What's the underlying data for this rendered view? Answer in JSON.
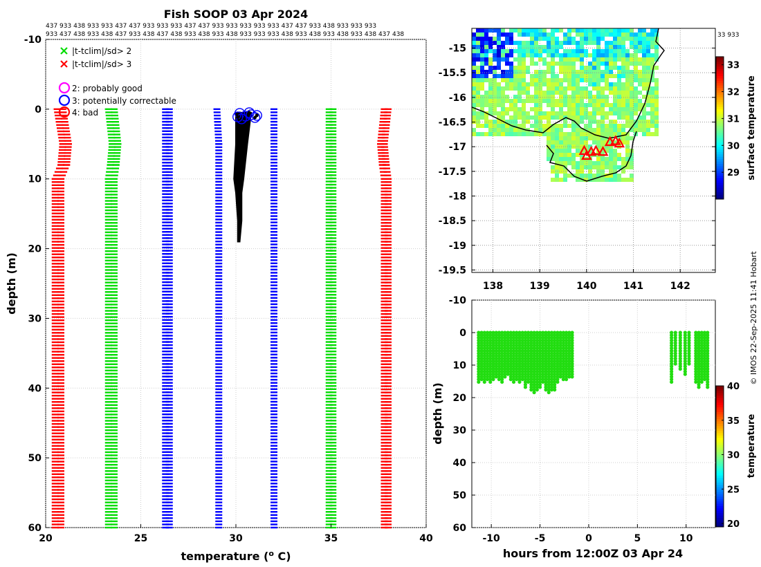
{
  "chart_data": [
    {
      "type": "scatter",
      "title": "Fish SOOP 03 Apr 2024",
      "xlabel": "temperature (",
      "xlabel_sup": "o",
      "xlabel_end": " C)",
      "ylabel": "depth (m)",
      "xlim": [
        20,
        40
      ],
      "ylim": [
        60,
        -10
      ],
      "xticks": [
        20,
        25,
        30,
        35,
        40
      ],
      "yticks": [
        -10,
        0,
        10,
        20,
        30,
        40,
        50,
        60
      ],
      "grid": true,
      "top_codes_row1": "437 933 438 933 933 437 437 933 933 933 437 437 933 933 933 933 933 437 437 933 438 933 933 933",
      "top_codes_row2": "933 437 438 933 438 437 933 438 437 438 933 438 933 438 933 933 933 438 933 438 933 438 933 438 437 438",
      "legend": {
        "green_cross": "|t-tclim|/sd> 2",
        "red_cross": "|t-tclim|/sd> 3",
        "magenta_circle": "2: probably good",
        "blue_circle": "3: potentially correctable",
        "red_circle": "4: bad"
      },
      "envelopes": [
        {
          "name": "clim-3sd-low",
          "color": "#ff0000",
          "points": [
            [
              20.6,
              0
            ],
            [
              20.9,
              5
            ],
            [
              20.8,
              8
            ],
            [
              20.5,
              10
            ],
            [
              20.5,
              60
            ]
          ]
        },
        {
          "name": "clim-3sd-low-inner",
          "color": "#ff0000",
          "points": [
            [
              20.9,
              0
            ],
            [
              21.2,
              5
            ],
            [
              21.1,
              8
            ],
            [
              20.8,
              10
            ],
            [
              20.8,
              60
            ]
          ]
        },
        {
          "name": "clim-2sd-low",
          "color": "#00dd00",
          "points": [
            [
              23.3,
              0
            ],
            [
              23.5,
              5
            ],
            [
              23.4,
              8
            ],
            [
              23.3,
              10
            ],
            [
              23.3,
              60
            ]
          ]
        },
        {
          "name": "clim-2sd-low-inner",
          "color": "#00dd00",
          "points": [
            [
              23.6,
              0
            ],
            [
              23.8,
              5
            ],
            [
              23.7,
              8
            ],
            [
              23.6,
              10
            ],
            [
              23.6,
              60
            ]
          ]
        },
        {
          "name": "clim-1sd-low",
          "color": "#0000ff",
          "points": [
            [
              26.3,
              0
            ],
            [
              26.3,
              60
            ]
          ]
        },
        {
          "name": "clim-1sd-low-inner",
          "color": "#0000ff",
          "points": [
            [
              26.5,
              0
            ],
            [
              26.5,
              60
            ]
          ]
        },
        {
          "name": "clim-mean",
          "color": "#0000ff",
          "points": [
            [
              29.0,
              0
            ],
            [
              29.1,
              5
            ],
            [
              29.1,
              60
            ]
          ]
        },
        {
          "name": "clim-1sd-high",
          "color": "#0000ff",
          "points": [
            [
              32.0,
              0
            ],
            [
              32.0,
              60
            ]
          ]
        },
        {
          "name": "clim-2sd-high",
          "color": "#00dd00",
          "points": [
            [
              34.9,
              0
            ],
            [
              34.9,
              60
            ]
          ]
        },
        {
          "name": "clim-2sd-high-inner",
          "color": "#00dd00",
          "points": [
            [
              35.1,
              0
            ],
            [
              35.1,
              60
            ]
          ]
        },
        {
          "name": "clim-3sd-high",
          "color": "#ff0000",
          "points": [
            [
              37.8,
              0
            ],
            [
              37.6,
              5
            ],
            [
              37.7,
              8
            ],
            [
              37.8,
              10
            ],
            [
              37.8,
              60
            ]
          ]
        },
        {
          "name": "clim-3sd-high-inner",
          "color": "#ff0000",
          "points": [
            [
              38.0,
              0
            ],
            [
              37.8,
              5
            ],
            [
              37.9,
              8
            ],
            [
              38.0,
              10
            ],
            [
              38.0,
              60
            ]
          ]
        }
      ],
      "profiles": [
        {
          "name": "fish-profiles-min",
          "points": [
            [
              30.0,
              0.5
            ],
            [
              30.0,
              5
            ],
            [
              29.9,
              10
            ],
            [
              30.0,
              12
            ],
            [
              30.1,
              16
            ],
            [
              30.1,
              19
            ]
          ]
        },
        {
          "name": "fish-profiles-max",
          "points": [
            [
              30.8,
              0.5
            ],
            [
              30.6,
              5
            ],
            [
              30.4,
              10
            ],
            [
              30.3,
              12
            ],
            [
              30.3,
              16
            ],
            [
              30.2,
              19
            ]
          ]
        }
      ],
      "flagged_points": [
        {
          "t": 30.2,
          "d": 0.6
        },
        {
          "t": 30.5,
          "d": 1.0
        },
        {
          "t": 30.8,
          "d": 0.8
        },
        {
          "t": 31.0,
          "d": 1.2
        },
        {
          "t": 30.3,
          "d": 1.4
        },
        {
          "t": 30.7,
          "d": 0.5
        },
        {
          "t": 31.1,
          "d": 0.9
        },
        {
          "t": 30.1,
          "d": 1.1
        }
      ]
    },
    {
      "type": "heatmap",
      "name": "surface-temperature-map",
      "xticks": [
        138,
        139,
        140,
        141,
        142
      ],
      "yticks": [
        -15,
        -15.5,
        -16,
        -16.5,
        -17,
        -17.5,
        -18,
        -18.5,
        -19,
        -19.5
      ],
      "xlim": [
        137.55,
        142.75
      ],
      "ylim": [
        -19.55,
        -14.6
      ],
      "grid": true,
      "colorbar_label": "surface temperature",
      "colorbar_range": [
        28,
        33.3
      ],
      "colorbar_ticks": [
        29,
        30,
        31,
        32,
        33
      ],
      "right_codes": "33 933",
      "station_markers": [
        {
          "lon": 139.95,
          "lat": -17.08
        },
        {
          "lon": 140.1,
          "lat": -17.1
        },
        {
          "lon": 140.2,
          "lat": -17.08
        },
        {
          "lon": 140.35,
          "lat": -17.1
        },
        {
          "lon": 140.0,
          "lat": -17.18
        },
        {
          "lon": 140.5,
          "lat": -16.9
        },
        {
          "lon": 140.62,
          "lat": -16.88
        },
        {
          "lon": 140.7,
          "lat": -16.93
        }
      ]
    },
    {
      "type": "scatter",
      "name": "depth-time-section",
      "xlabel": "hours from 12:00Z 03 Apr 24",
      "ylabel": "depth (m)",
      "xlim": [
        -12,
        13
      ],
      "ylim": [
        60,
        -10
      ],
      "xticks": [
        -10,
        -5,
        0,
        5,
        10
      ],
      "yticks": [
        -10,
        0,
        10,
        20,
        30,
        40,
        50,
        60
      ],
      "grid": true,
      "colorbar_label": "temperature",
      "colorbar_range": [
        19.5,
        40
      ],
      "colorbar_ticks": [
        20,
        25,
        30,
        35,
        40
      ],
      "casts": [
        {
          "h": -11.3,
          "d": 16
        },
        {
          "h": -11.0,
          "d": 15
        },
        {
          "h": -10.7,
          "d": 16
        },
        {
          "h": -10.4,
          "d": 15
        },
        {
          "h": -10.1,
          "d": 16
        },
        {
          "h": -9.8,
          "d": 15
        },
        {
          "h": -9.5,
          "d": 14
        },
        {
          "h": -9.2,
          "d": 15
        },
        {
          "h": -8.9,
          "d": 16
        },
        {
          "h": -8.6,
          "d": 14
        },
        {
          "h": -8.3,
          "d": 13
        },
        {
          "h": -8.0,
          "d": 15
        },
        {
          "h": -7.7,
          "d": 16
        },
        {
          "h": -7.4,
          "d": 15
        },
        {
          "h": -7.1,
          "d": 16
        },
        {
          "h": -6.8,
          "d": 15
        },
        {
          "h": -6.5,
          "d": 17
        },
        {
          "h": -6.2,
          "d": 16
        },
        {
          "h": -5.9,
          "d": 18
        },
        {
          "h": -5.6,
          "d": 19
        },
        {
          "h": -5.3,
          "d": 18
        },
        {
          "h": -5.0,
          "d": 17
        },
        {
          "h": -4.7,
          "d": 16
        },
        {
          "h": -4.4,
          "d": 18
        },
        {
          "h": -4.1,
          "d": 19
        },
        {
          "h": -3.8,
          "d": 18
        },
        {
          "h": -3.5,
          "d": 18
        },
        {
          "h": -3.2,
          "d": 16
        },
        {
          "h": -2.9,
          "d": 14
        },
        {
          "h": -2.6,
          "d": 15
        },
        {
          "h": -2.3,
          "d": 15
        },
        {
          "h": -2.0,
          "d": 14
        },
        {
          "h": -1.7,
          "d": 14
        },
        {
          "h": 8.5,
          "d": 16
        },
        {
          "h": 8.9,
          "d": 10
        },
        {
          "h": 9.4,
          "d": 12
        },
        {
          "h": 9.9,
          "d": 13
        },
        {
          "h": 10.3,
          "d": 10
        },
        {
          "h": 11.0,
          "d": 16
        },
        {
          "h": 11.3,
          "d": 17
        },
        {
          "h": 11.6,
          "d": 16
        },
        {
          "h": 11.9,
          "d": 15
        },
        {
          "h": 12.2,
          "d": 17
        }
      ]
    }
  ],
  "credit": "© IMOS 22-Sep-2025 11:41 Hobart"
}
